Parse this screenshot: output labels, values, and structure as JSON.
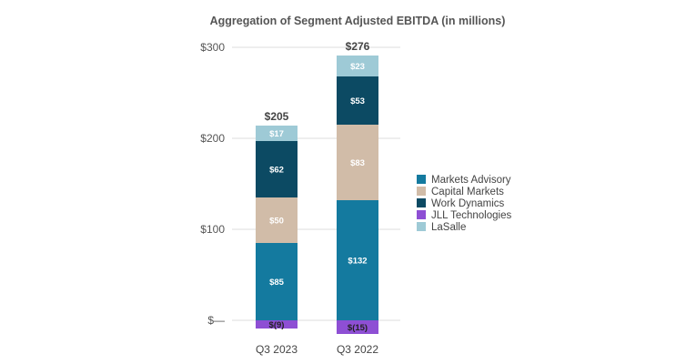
{
  "chart_data": {
    "type": "bar",
    "stacked": true,
    "title": "Aggregation of Segment Adjusted EBITDA (in millions)",
    "categories": [
      "Q3 2023",
      "Q3 2022"
    ],
    "totals": [
      "$205",
      "$276"
    ],
    "y_ticks": [
      "$300",
      "$200",
      "$100",
      "$—"
    ],
    "ylim": [
      -20,
      300
    ],
    "legend_position": "right",
    "series": [
      {
        "name": "Markets Advisory",
        "color": "#147a9f",
        "values": [
          85,
          132
        ],
        "labels": [
          "$85",
          "$132"
        ],
        "label_color": "#ffffff"
      },
      {
        "name": "Capital Markets",
        "color": "#d1bca8",
        "values": [
          50,
          83
        ],
        "labels": [
          "$50",
          "$83"
        ],
        "label_color": "#ffffff"
      },
      {
        "name": "Work Dynamics",
        "color": "#0c4a63",
        "values": [
          62,
          53
        ],
        "labels": [
          "$62",
          "$53"
        ],
        "label_color": "#ffffff"
      },
      {
        "name": "JLL Technologies",
        "color": "#8e4fd4",
        "values": [
          -9,
          -15
        ],
        "labels": [
          "$(9)",
          "$(15)"
        ],
        "label_color": "#222222"
      },
      {
        "name": "LaSalle",
        "color": "#9ecad6",
        "values": [
          17,
          23
        ],
        "labels": [
          "$17",
          "$23"
        ],
        "label_color": "#ffffff"
      }
    ]
  }
}
